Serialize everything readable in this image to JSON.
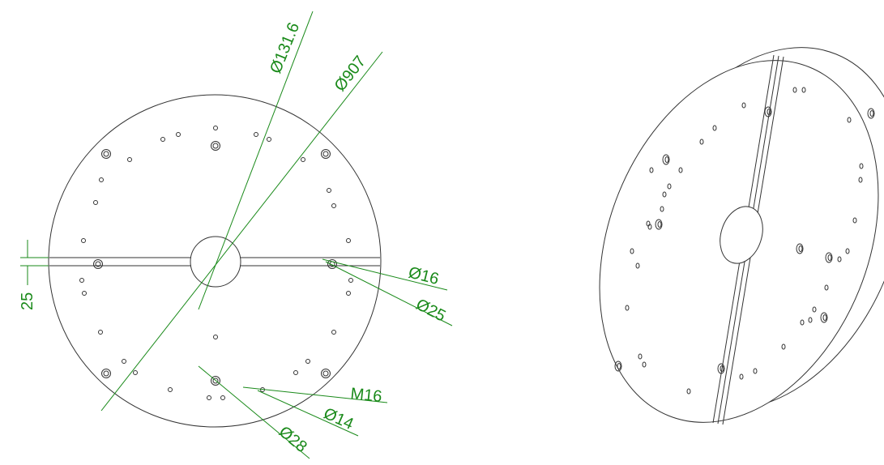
{
  "dimensions": [
    {
      "label": "Ø131.6"
    },
    {
      "label": "Ø907"
    },
    {
      "label": "Ø16"
    },
    {
      "label": "Ø25"
    },
    {
      "label": "25"
    },
    {
      "label": "M16"
    },
    {
      "label": "Ø14"
    },
    {
      "label": "Ø28"
    }
  ]
}
